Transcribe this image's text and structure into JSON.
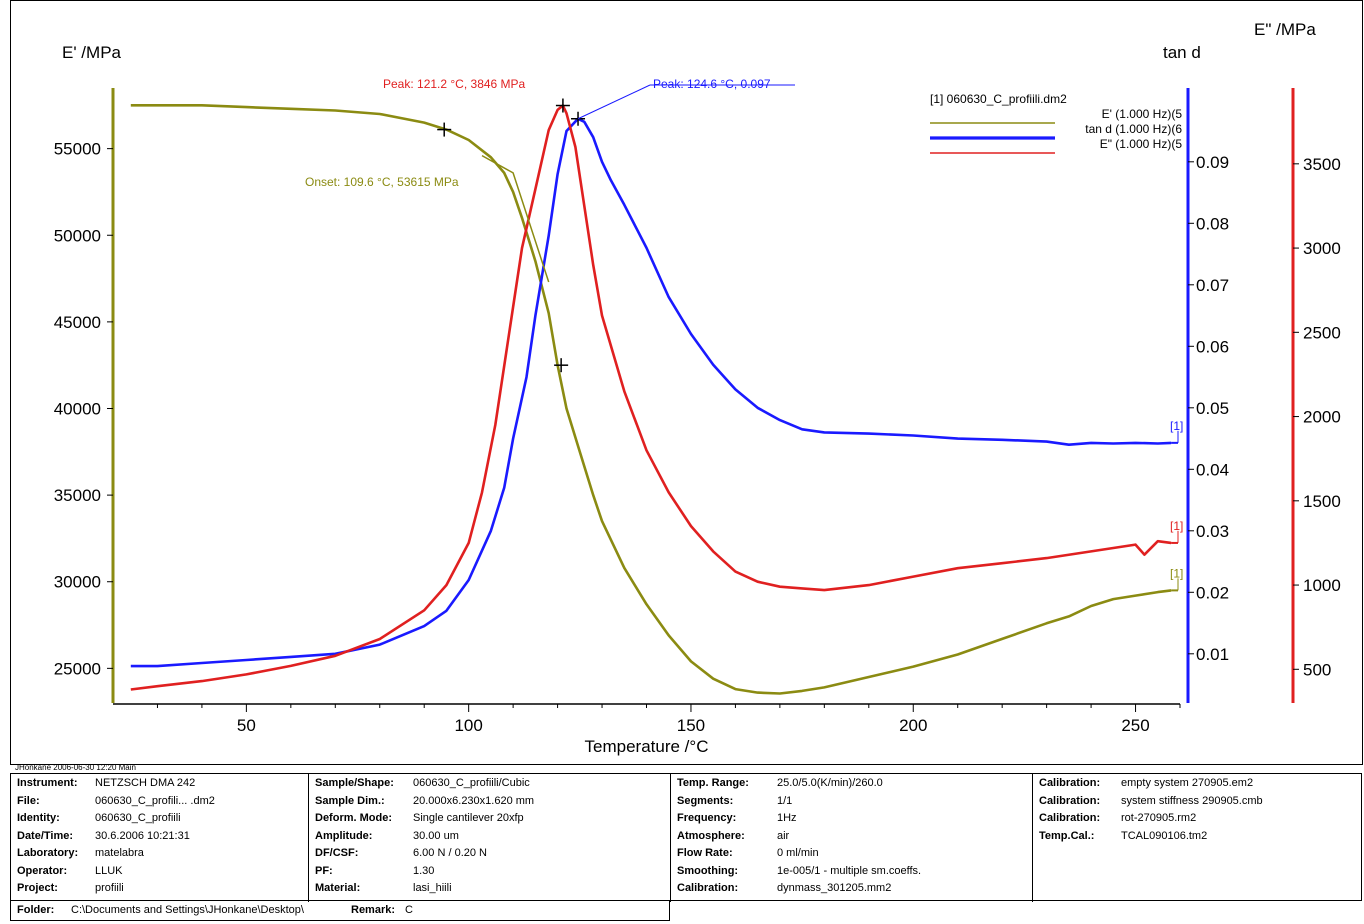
{
  "chart_data": {
    "type": "line",
    "x_axis": {
      "label": "Temperature /°C",
      "range": [
        20,
        260
      ],
      "ticks": [
        50,
        100,
        150,
        200,
        250
      ]
    },
    "y_axes": [
      {
        "id": "E_storage",
        "label": "E' /MPa",
        "side": "left",
        "range": [
          23000,
          58500
        ],
        "ticks": [
          25000,
          30000,
          35000,
          40000,
          45000,
          50000,
          55000
        ],
        "color": "#8b8b12"
      },
      {
        "id": "tand",
        "label": "tan d",
        "side": "right-inner",
        "range": [
          0.002,
          0.102
        ],
        "ticks": [
          "0.01",
          "0.02",
          "0.03",
          "0.04",
          "0.05",
          "0.06",
          "0.07",
          "0.08",
          "0.09"
        ],
        "color": "#1a1aff"
      },
      {
        "id": "E_loss",
        "label": "E\" /MPa",
        "side": "right-outer",
        "range": [
          300,
          3950
        ],
        "ticks": [
          500,
          1000,
          1500,
          2000,
          2500,
          3000,
          3500
        ],
        "color": "#e02020"
      }
    ],
    "series": [
      {
        "name": "E' (1.000 Hz)(5",
        "axis": "E_storage",
        "color": "#8b8b12",
        "x": [
          24,
          30,
          40,
          50,
          60,
          70,
          80,
          90,
          95,
          100,
          105,
          108,
          110,
          112,
          115,
          118,
          120,
          122,
          125,
          128,
          130,
          135,
          140,
          145,
          150,
          155,
          160,
          165,
          170,
          175,
          180,
          190,
          200,
          210,
          220,
          230,
          235,
          240,
          245,
          250,
          255,
          258
        ],
        "y": [
          57500,
          57500,
          57500,
          57400,
          57300,
          57200,
          57000,
          56500,
          56100,
          55500,
          54500,
          53600,
          52500,
          51000,
          48500,
          45500,
          42500,
          40000,
          37500,
          35000,
          33500,
          30800,
          28700,
          26900,
          25400,
          24400,
          23800,
          23600,
          23550,
          23700,
          23900,
          24500,
          25100,
          25800,
          26700,
          27600,
          28000,
          28600,
          29000,
          29200,
          29400,
          29500
        ]
      },
      {
        "name": "tan d (1.000 Hz)(6",
        "axis": "tand",
        "color": "#1a1aff",
        "x": [
          24,
          30,
          40,
          50,
          60,
          70,
          80,
          90,
          95,
          100,
          105,
          108,
          110,
          113,
          115,
          118,
          120,
          122,
          124.6,
          126,
          128,
          130,
          132,
          135,
          140,
          145,
          150,
          155,
          160,
          165,
          170,
          175,
          180,
          190,
          200,
          210,
          220,
          230,
          235,
          240,
          245,
          250,
          255,
          258
        ],
        "y": [
          0.008,
          0.008,
          0.0085,
          0.009,
          0.0095,
          0.01,
          0.0115,
          0.0145,
          0.017,
          0.022,
          0.03,
          0.037,
          0.045,
          0.055,
          0.065,
          0.078,
          0.088,
          0.095,
          0.097,
          0.0965,
          0.094,
          0.09,
          0.087,
          0.083,
          0.076,
          0.068,
          0.062,
          0.057,
          0.053,
          0.05,
          0.048,
          0.0465,
          0.046,
          0.0458,
          0.0455,
          0.045,
          0.0448,
          0.0445,
          0.044,
          0.0443,
          0.0442,
          0.0443,
          0.0442,
          0.0443
        ]
      },
      {
        "name": "E\" (1.000 Hz)(5",
        "axis": "E_loss",
        "color": "#e02020",
        "x": [
          24,
          30,
          40,
          50,
          60,
          70,
          80,
          90,
          95,
          100,
          103,
          106,
          108,
          110,
          112,
          115,
          118,
          120,
          121.2,
          122,
          124,
          126,
          128,
          130,
          135,
          140,
          145,
          150,
          155,
          160,
          165,
          170,
          175,
          180,
          190,
          200,
          210,
          220,
          230,
          240,
          250,
          252,
          255,
          258
        ],
        "y": [
          380,
          400,
          430,
          470,
          520,
          580,
          680,
          850,
          1000,
          1250,
          1550,
          1950,
          2300,
          2650,
          3000,
          3350,
          3700,
          3820,
          3846,
          3800,
          3600,
          3250,
          2900,
          2600,
          2150,
          1800,
          1550,
          1350,
          1200,
          1080,
          1020,
          990,
          980,
          970,
          1000,
          1050,
          1100,
          1130,
          1160,
          1200,
          1240,
          1180,
          1260,
          1250
        ]
      }
    ],
    "markers": [
      {
        "series": "E_storage",
        "x": 94.5,
        "y": 56100
      },
      {
        "series": "E_storage",
        "x": 120.8,
        "y": 42500
      },
      {
        "series": "E_loss",
        "x": 121.2,
        "y": 3846
      },
      {
        "series": "tand",
        "x": 124.6,
        "y": 0.097
      }
    ],
    "onset_lines": [
      {
        "points": [
          [
            103,
            54600
          ],
          [
            110,
            53600
          ],
          [
            118,
            47300
          ]
        ]
      }
    ],
    "annotations": [
      {
        "text": "Peak: 121.2 °C, 3846 MPa",
        "color": "#e02020"
      },
      {
        "text": "Peak: 124.6 °C, 0.097",
        "color": "#1a1aff"
      },
      {
        "text": "Onset: 109.6 °C, 53615 MPa",
        "color": "#8b8b12"
      }
    ],
    "legend": {
      "title": "[1] 060630_C_profiili.dm2",
      "position": "top-right",
      "entries": [
        "E' (1.000 Hz)(5",
        "tan d (1.000 Hz)(6",
        "E\" (1.000 Hz)(5"
      ]
    },
    "end_labels": [
      "[1]",
      "[1]",
      "[1]"
    ]
  },
  "footer": {
    "meta": "JHonkane   2006-06-30 12:20   Main",
    "columns": [
      {
        "rows": [
          {
            "k": "Instrument:",
            "v": "NETZSCH DMA 242"
          },
          {
            "k": "File:",
            "v": "060630_C_profili... .dm2"
          },
          {
            "k": "Identity:",
            "v": "060630_C_profiili"
          },
          {
            "k": "Date/Time:",
            "v": "30.6.2006 10:21:31"
          },
          {
            "k": "Laboratory:",
            "v": "matelabra"
          },
          {
            "k": "Operator:",
            "v": "LLUK"
          },
          {
            "k": "Project:",
            "v": "profiili"
          }
        ]
      },
      {
        "rows": [
          {
            "k": "Sample/Shape:",
            "v": "060630_C_profiili/Cubic"
          },
          {
            "k": "Sample Dim.:",
            "v": "20.000x6.230x1.620 mm"
          },
          {
            "k": "Deform. Mode:",
            "v": "Single cantilever 20xfp"
          },
          {
            "k": "Amplitude:",
            "v": "30.00 um"
          },
          {
            "k": "DF/CSF:",
            "v": "6.00 N / 0.20 N"
          },
          {
            "k": "PF:",
            "v": "1.30"
          },
          {
            "k": "Material:",
            "v": "lasi_hiili"
          }
        ]
      },
      {
        "rows": [
          {
            "k": "Temp. Range:",
            "v": "25.0/5.0(K/min)/260.0"
          },
          {
            "k": "Segments:",
            "v": "1/1"
          },
          {
            "k": "Frequency:",
            "v": "1Hz"
          },
          {
            "k": "Atmosphere:",
            "v": "air"
          },
          {
            "k": "Flow Rate:",
            "v": "0 ml/min"
          },
          {
            "k": "Smoothing:",
            "v": "1e-005/1 - multiple sm.coeffs."
          },
          {
            "k": "Calibration:",
            "v": "dynmass_301205.mm2"
          }
        ]
      },
      {
        "rows": [
          {
            "k": "Calibration:",
            "v": "empty system 270905.em2"
          },
          {
            "k": "Calibration:",
            "v": "system stiffness 290905.cmb"
          },
          {
            "k": "Calibration:",
            "v": "rot-270905.rm2"
          },
          {
            "k": "Temp.Cal.:",
            "v": "TCAL090106.tm2"
          }
        ]
      }
    ],
    "folder_label": "Folder:",
    "folder_value": "C:\\Documents and Settings\\JHonkane\\Desktop\\",
    "remark_label": "Remark:",
    "remark_value": "C"
  }
}
